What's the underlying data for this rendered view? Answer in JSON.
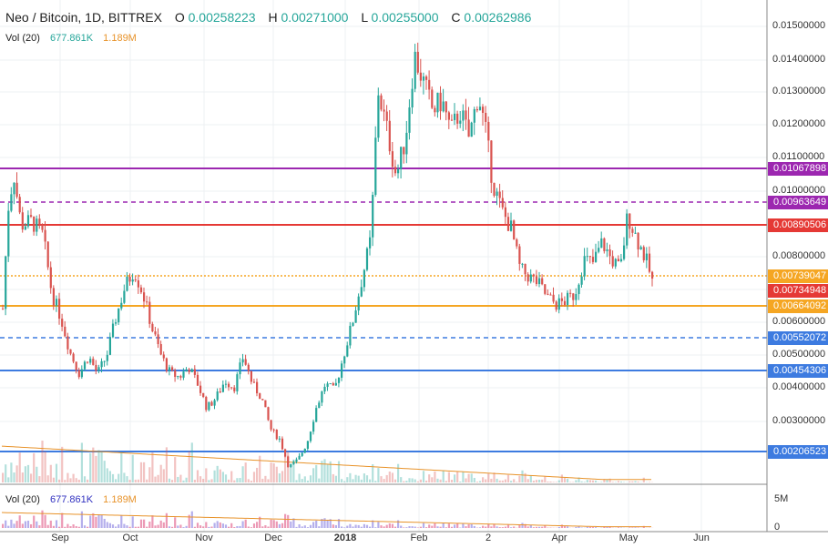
{
  "header": {
    "symbol": "Neo / Bitcoin, 1D, BITTREX",
    "o_label": "O",
    "o_value": "0.00258223",
    "h_label": "H",
    "h_value": "0.00271000",
    "l_label": "L",
    "l_value": "0.00255000",
    "c_label": "C",
    "c_value": "0.00262986"
  },
  "volume_legend": {
    "label": "Vol (20)",
    "value": "677.861K",
    "ma": "1.189M"
  },
  "colors": {
    "up": "#26a69a",
    "down": "#d9534f",
    "vol_ma": "#e8932a"
  },
  "chart_data": {
    "type": "candlestick",
    "title": "Neo / Bitcoin, 1D, BITTREX",
    "y_axis": {
      "ticks": [
        "0.01500000",
        "0.01400000",
        "0.01300000",
        "0.01200000",
        "0.01100000",
        "0.01000000",
        "0.00800000",
        "0.00700000",
        "0.00600000",
        "0.00500000",
        "0.00400000",
        "0.00300000"
      ],
      "ylim": [
        0.0018,
        0.0158
      ]
    },
    "x_axis": {
      "ticks": [
        "Sep",
        "Oct",
        "Nov",
        "Dec",
        "2018",
        "Feb",
        "2",
        "Apr",
        "May",
        "Jun"
      ]
    },
    "levels": [
      {
        "value": "0.01067898",
        "color": "#9c27b0",
        "style": "solid"
      },
      {
        "value": "0.00963649",
        "color": "#9c27b0",
        "style": "dashed"
      },
      {
        "value": "0.00890506",
        "color": "#e53935",
        "style": "solid"
      },
      {
        "value": "0.00739047",
        "color": "#f5a623",
        "style": "dotted"
      },
      {
        "value": "0.00734948",
        "color": "#e53935",
        "style": "tag"
      },
      {
        "value": "0.00664092",
        "color": "#f5a623",
        "style": "solid"
      },
      {
        "value": "0.00552072",
        "color": "#3d7be0",
        "style": "dashed"
      },
      {
        "value": "0.00454306",
        "color": "#3d7be0",
        "style": "solid"
      },
      {
        "value": "0.00206523",
        "color": "#3d7be0",
        "style": "solid"
      }
    ],
    "price_path": [
      [
        0,
        0.0059
      ],
      [
        8,
        0.0098
      ],
      [
        14,
        0.0108
      ],
      [
        22,
        0.0093
      ],
      [
        34,
        0.0094
      ],
      [
        46,
        0.009
      ],
      [
        56,
        0.0073
      ],
      [
        66,
        0.0066
      ],
      [
        76,
        0.0056
      ],
      [
        86,
        0.005
      ],
      [
        96,
        0.0055
      ],
      [
        106,
        0.005
      ],
      [
        116,
        0.0055
      ],
      [
        126,
        0.0066
      ],
      [
        136,
        0.0075
      ],
      [
        146,
        0.008
      ],
      [
        156,
        0.0073
      ],
      [
        166,
        0.0063
      ],
      [
        176,
        0.0055
      ],
      [
        186,
        0.005
      ],
      [
        196,
        0.0049
      ],
      [
        206,
        0.0052
      ],
      [
        216,
        0.0047
      ],
      [
        226,
        0.004
      ],
      [
        236,
        0.0043
      ],
      [
        246,
        0.0048
      ],
      [
        256,
        0.0046
      ],
      [
        266,
        0.0055
      ],
      [
        276,
        0.0047
      ],
      [
        286,
        0.0043
      ],
      [
        296,
        0.0034
      ],
      [
        306,
        0.0031
      ],
      [
        316,
        0.0023
      ],
      [
        326,
        0.0025
      ],
      [
        336,
        0.003
      ],
      [
        346,
        0.004
      ],
      [
        356,
        0.0047
      ],
      [
        366,
        0.0045
      ],
      [
        376,
        0.0055
      ],
      [
        386,
        0.0065
      ],
      [
        396,
        0.0077
      ],
      [
        406,
        0.0089
      ],
      [
        414,
        0.0132
      ],
      [
        424,
        0.012
      ],
      [
        434,
        0.0107
      ],
      [
        444,
        0.0118
      ],
      [
        454,
        0.0142
      ],
      [
        464,
        0.0134
      ],
      [
        474,
        0.0126
      ],
      [
        484,
        0.0129
      ],
      [
        494,
        0.012
      ],
      [
        504,
        0.0126
      ],
      [
        514,
        0.0118
      ],
      [
        524,
        0.0131
      ],
      [
        532,
        0.012
      ],
      [
        540,
        0.0105
      ],
      [
        550,
        0.0097
      ],
      [
        560,
        0.0092
      ],
      [
        570,
        0.008
      ],
      [
        580,
        0.0078
      ],
      [
        590,
        0.0076
      ],
      [
        600,
        0.0072
      ],
      [
        610,
        0.007
      ],
      [
        620,
        0.0071
      ],
      [
        630,
        0.0073
      ],
      [
        640,
        0.0083
      ],
      [
        650,
        0.0082
      ],
      [
        660,
        0.0088
      ],
      [
        670,
        0.0083
      ],
      [
        680,
        0.008
      ],
      [
        688,
        0.0096
      ],
      [
        698,
        0.0089
      ],
      [
        708,
        0.0083
      ],
      [
        718,
        0.0074
      ]
    ]
  }
}
